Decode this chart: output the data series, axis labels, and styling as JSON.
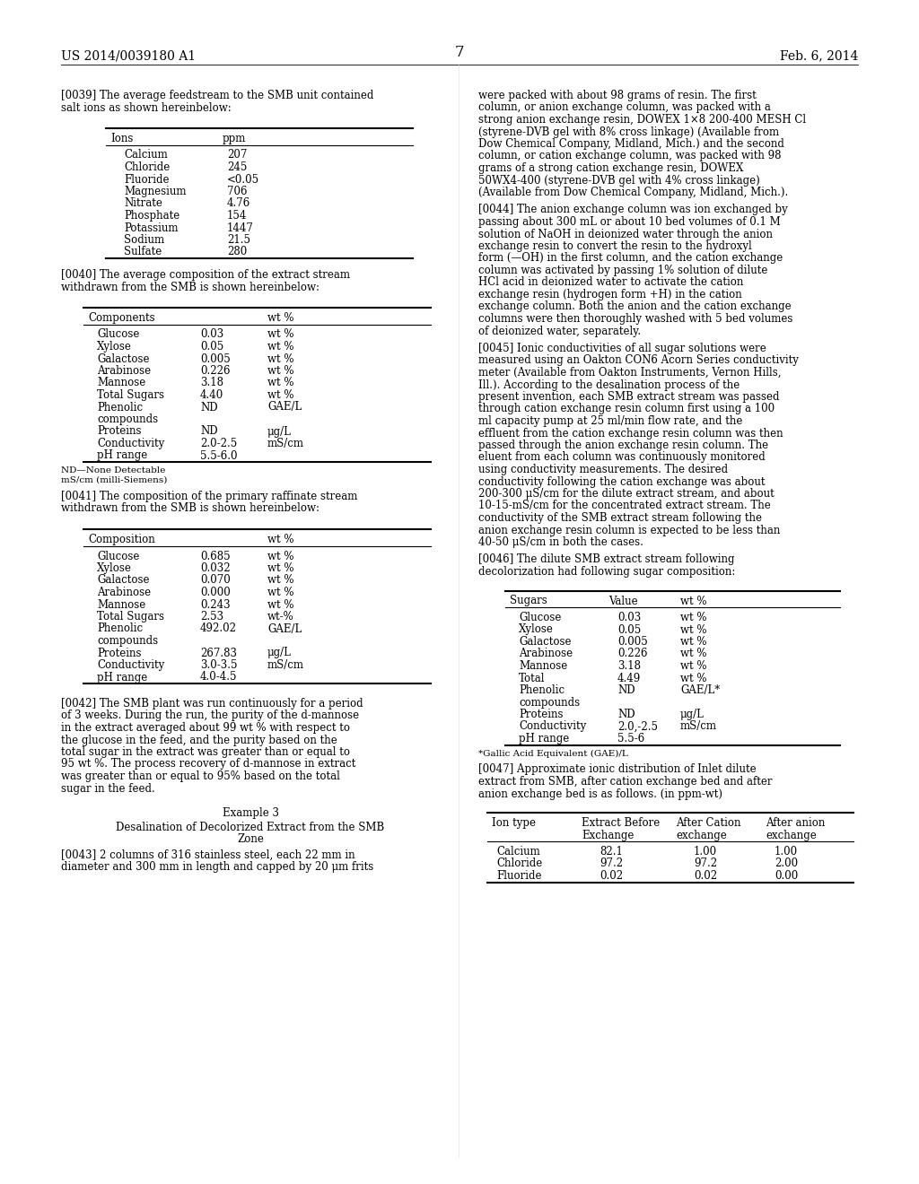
{
  "bg_color": "#ffffff",
  "header_left": "US 2014/0039180 A1",
  "header_right": "Feb. 6, 2014",
  "page_number": "7",
  "para_0039": "[0039]  The average feedstream to the SMB unit contained salt ions as shown hereinbelow:",
  "table1_headers": [
    "Ions",
    "ppm"
  ],
  "table1_rows": [
    [
      "Calcium",
      "207"
    ],
    [
      "Chloride",
      "245"
    ],
    [
      "Fluoride",
      "<0.05"
    ],
    [
      "Magnesium",
      "706"
    ],
    [
      "Nitrate",
      "4.76"
    ],
    [
      "Phosphate",
      "154"
    ],
    [
      "Potassium",
      "1447"
    ],
    [
      "Sodium",
      "21.5"
    ],
    [
      "Sulfate",
      "280"
    ]
  ],
  "para_0040": "[0040]  The average composition of the extract stream withdrawn from the SMB is shown hereinbelow:",
  "table2_headers": [
    "Components",
    "wt %"
  ],
  "table2_rows": [
    [
      "Glucose",
      "0.03",
      "wt %"
    ],
    [
      "Xylose",
      "0.05",
      "wt %"
    ],
    [
      "Galactose",
      "0.005",
      "wt %"
    ],
    [
      "Arabinose",
      "0.226",
      "wt %"
    ],
    [
      "Mannose",
      "3.18",
      "wt %"
    ],
    [
      "Total Sugars",
      "4.40",
      "wt %"
    ],
    [
      "Phenolic",
      "ND",
      "GAE/L"
    ],
    [
      "compounds",
      "",
      ""
    ],
    [
      "Proteins",
      "ND",
      "μg/L"
    ],
    [
      "Conductivity",
      "2.0-2.5",
      "mS/cm"
    ],
    [
      "pH range",
      "5.5-6.0",
      ""
    ]
  ],
  "table2_footnote1": "ND—None Detectable",
  "table2_footnote2": "mS/cm (milli-Siemens)",
  "para_0041": "[0041]  The composition of the primary raffinate stream withdrawn from the SMB is shown hereinbelow:",
  "table3_headers": [
    "Composition",
    "wt %"
  ],
  "table3_rows": [
    [
      "Glucose",
      "0.685",
      "wt %"
    ],
    [
      "Xylose",
      "0.032",
      "wt %"
    ],
    [
      "Galactose",
      "0.070",
      "wt %"
    ],
    [
      "Arabinose",
      "0.000",
      "wt %"
    ],
    [
      "Mannose",
      "0.243",
      "wt %"
    ],
    [
      "Total Sugars",
      "2.53",
      "wt-%"
    ],
    [
      "Phenolic",
      "492.02",
      "GAE/L"
    ],
    [
      "compounds",
      "",
      ""
    ],
    [
      "Proteins",
      "267.83",
      "μg/L"
    ],
    [
      "Conductivity",
      "3.0-3.5",
      "mS/cm"
    ],
    [
      "pH range",
      "4.0-4.5",
      ""
    ]
  ],
  "para_0042": "[0042]  The SMB plant was run continuously for a period of 3 weeks. During the run, the purity of the d-mannose in the extract averaged about 99 wt % with respect to the glucose in the feed, and the purity based on the total sugar in the extract was greater than or equal to 95 wt %. The process recovery of d-mannose in extract was greater than or equal to 95% based on the total sugar in the feed.",
  "example3_title": "Example 3",
  "example3_subtitle1": "Desalination of Decolorized Extract from the SMB",
  "example3_subtitle2": "Zone",
  "para_0043": "[0043]  2 columns of 316 stainless steel, each 22 mm in diameter and 300 mm in length and capped by 20 μm frits",
  "right_col_text1": "were packed with about 98 grams of resin. The first column, or anion exchange column, was packed with a strong anion exchange resin, DOWEX 1×8 200-400 MESH Cl (styrene-DVB gel with 8% cross linkage) (Available from Dow Chemical Company, Midland, Mich.) and the second column, or cation exchange column, was packed with 98 grams of a strong cation exchange resin, DOWEX 50WX4-400 (styrene-DVB gel with 4% cross linkage) (Available from Dow Chemical Company, Midland, Mich.).",
  "para_0044": "[0044]  The anion exchange column was ion exchanged by passing about 300 mL or about 10 bed volumes of 0.1 M solution of NaOH in deionized water through the anion exchange resin to convert the resin to the hydroxyl form (—OH) in the first column, and the cation exchange column was activated by passing 1% solution of dilute HCl acid in deionized water to activate the cation exchange resin (hydrogen form +H) in the cation exchange column. Both the anion and the cation exchange columns were then thoroughly washed with 5 bed volumes of deionized water, separately.",
  "para_0045": "[0045]  Ionic conductivities of all sugar solutions were measured using an Oakton CON6 Acorn Series conductivity meter (Available from Oakton Instruments, Vernon Hills, Ill.). According to the desalination process of the present invention, each SMB extract stream was passed through cation exchange resin column first using a 100 ml capacity pump at 25 ml/min flow rate, and the effluent from the cation exchange resin column was then passed through the anion exchange resin column. The eluent from each column was continuously monitored using conductivity measurements. The desired conductivity following the cation exchange was about 200-300 μS/cm for the dilute extract stream, and about 10-15-mS/cm for the concentrated extract stream. The conductivity of the SMB extract stream following the anion exchange resin column is expected to be less than 40-50 μS/cm in both the cases.",
  "para_0046": "[0046]  The dilute SMB extract stream following decolorization had following sugar composition:",
  "table4_headers": [
    "Sugars",
    "Value",
    "wt %"
  ],
  "table4_rows": [
    [
      "Glucose",
      "0.03",
      "wt %"
    ],
    [
      "Xylose",
      "0.05",
      "wt %"
    ],
    [
      "Galactose",
      "0.005",
      "wt %"
    ],
    [
      "Arabinose",
      "0.226",
      "wt %"
    ],
    [
      "Mannose",
      "3.18",
      "wt %"
    ],
    [
      "Total",
      "4.49",
      "wt %"
    ],
    [
      "Phenolic",
      "ND",
      "GAE/L*"
    ],
    [
      "compounds",
      "",
      ""
    ],
    [
      "Proteins",
      "ND",
      "μg/L"
    ],
    [
      "Conductivity",
      "2.0,-2.5",
      "mS/cm"
    ],
    [
      "pH range",
      "5.5-6",
      ""
    ]
  ],
  "table4_footnote": "*Gallic Acid Equivalent (GAE)/L",
  "para_0047": "[0047]  Approximate ionic distribution of Inlet dilute extract from SMB, after cation exchange bed and after anion exchange bed is as follows. (in ppm-wt)",
  "table5_headers": [
    "Ion type",
    "Extract Before\nExchange",
    "After Cation\nexchange",
    "After anion\nexchange"
  ],
  "table5_rows": [
    [
      "Calcium",
      "82.1",
      "1.00",
      "1.00"
    ],
    [
      "Chloride",
      "97.2",
      "97.2",
      "2.00"
    ],
    [
      "Fluoride",
      "0.02",
      "0.02",
      "0.00"
    ]
  ]
}
